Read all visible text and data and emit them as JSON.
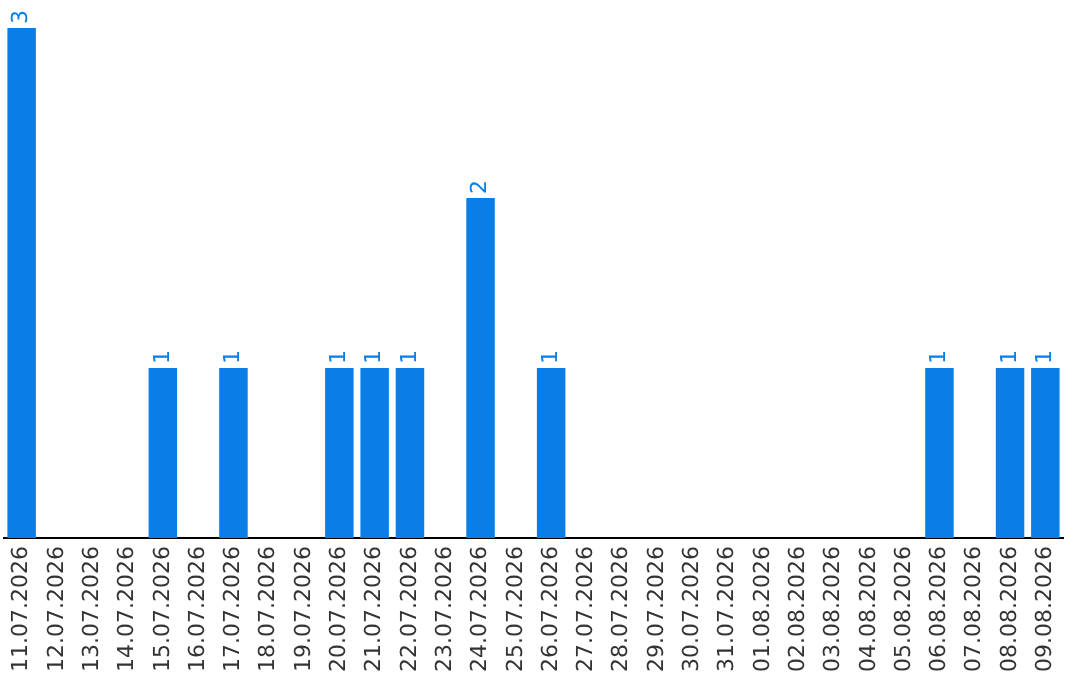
{
  "chart_data": {
    "type": "bar",
    "categories": [
      "11.07.2026",
      "12.07.2026",
      "13.07.2026",
      "14.07.2026",
      "15.07.2026",
      "16.07.2026",
      "17.07.2026",
      "18.07.2026",
      "19.07.2026",
      "20.07.2026",
      "21.07.2026",
      "22.07.2026",
      "23.07.2026",
      "24.07.2026",
      "25.07.2026",
      "26.07.2026",
      "27.07.2026",
      "28.07.2026",
      "29.07.2026",
      "30.07.2026",
      "31.07.2026",
      "01.08.2026",
      "02.08.2026",
      "03.08.2026",
      "04.08.2026",
      "05.08.2026",
      "06.08.2026",
      "07.08.2026",
      "08.08.2026",
      "09.08.2026"
    ],
    "values": [
      3,
      0,
      0,
      0,
      1,
      0,
      1,
      0,
      0,
      1,
      1,
      1,
      0,
      2,
      0,
      1,
      0,
      0,
      0,
      0,
      0,
      0,
      0,
      0,
      0,
      0,
      1,
      0,
      1,
      1
    ],
    "value_labels": [
      "3",
      null,
      null,
      null,
      "1",
      null,
      "1",
      null,
      null,
      "1",
      "1",
      "1",
      null,
      "2",
      null,
      "1",
      null,
      null,
      null,
      null,
      null,
      null,
      null,
      null,
      null,
      null,
      "1",
      null,
      "1",
      "1"
    ],
    "color": "#0a7ee6",
    "grid": false,
    "legend": false
  }
}
